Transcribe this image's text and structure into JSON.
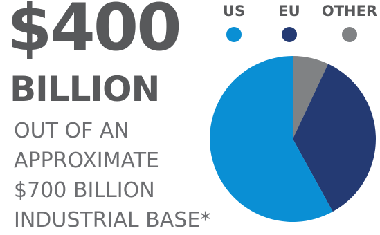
{
  "headline": {
    "amount": "$400",
    "unit": "BILLION",
    "description_lines": [
      "OUT OF AN",
      "APPROXIMATE",
      "$700 BILLION",
      "INDUSTRIAL BASE*"
    ]
  },
  "chart_data": {
    "type": "pie",
    "categories": [
      "US",
      "EU",
      "OTHER"
    ],
    "values": [
      58,
      35,
      7
    ],
    "colors": [
      "#0a8fd4",
      "#243a73",
      "#808284"
    ],
    "legend_position": "top"
  }
}
